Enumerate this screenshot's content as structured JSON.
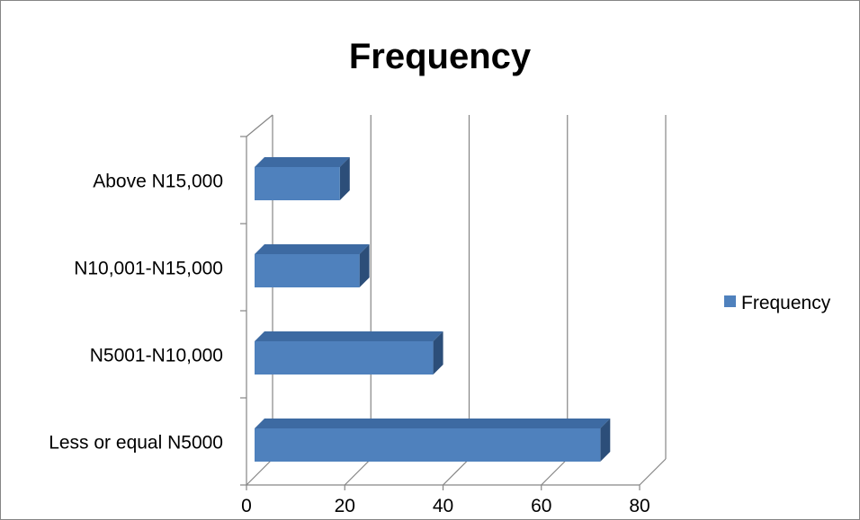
{
  "chart_data": {
    "type": "bar",
    "orientation": "horizontal",
    "style": "3d",
    "title": "Frequency",
    "categories": [
      "Less or equal N5000",
      "N5001-N10,000",
      "N10,001-N15,000",
      "Above N15,000"
    ],
    "series": [
      {
        "name": "Frequency",
        "values": [
          72,
          38,
          23,
          19
        ]
      }
    ],
    "xlim": [
      0,
      80
    ],
    "xticks": [
      0,
      20,
      40,
      60,
      80
    ],
    "grid": true,
    "legend": "right",
    "colors": {
      "bar_front": "#4f81bd",
      "bar_top": "#3d6aa2",
      "bar_side": "#2c4e79",
      "grid": "#868686"
    }
  }
}
